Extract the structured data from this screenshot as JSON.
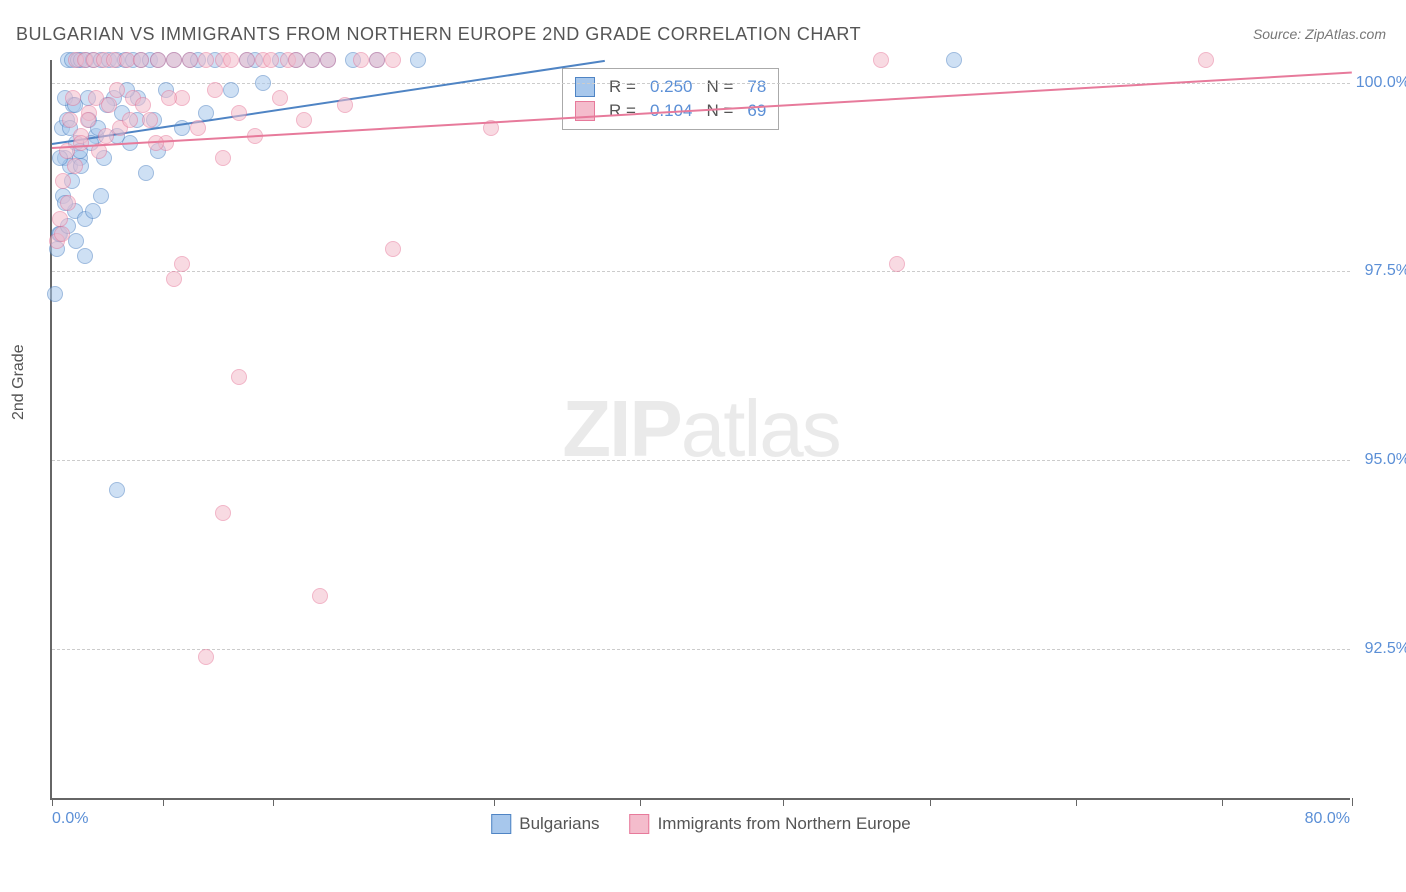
{
  "title": "BULGARIAN VS IMMIGRANTS FROM NORTHERN EUROPE 2ND GRADE CORRELATION CHART",
  "source": "Source: ZipAtlas.com",
  "y_axis_label": "2nd Grade",
  "watermark_bold": "ZIP",
  "watermark_rest": "atlas",
  "chart": {
    "type": "scatter",
    "xlim": [
      0,
      80
    ],
    "ylim": [
      90.5,
      100.3
    ],
    "y_ticks": [
      92.5,
      95.0,
      97.5,
      100.0
    ],
    "y_tick_labels": [
      "92.5%",
      "95.0%",
      "97.5%",
      "100.0%"
    ],
    "x_ticks_pct": [
      0,
      6.8,
      13.6,
      27.2,
      36.2,
      45.0,
      54.0,
      63.0,
      72.0,
      80.0
    ],
    "x_left_label": "0.0%",
    "x_right_label": "80.0%",
    "background_color": "#ffffff",
    "grid_color": "#cccccc",
    "series": [
      {
        "name": "Bulgarians",
        "legend_label": "Bulgarians",
        "fill_color": "#a7c7ec",
        "stroke_color": "#4f84c4",
        "r_label": "R =",
        "r_value": "0.250",
        "n_label": "N =",
        "n_value": "78",
        "trend": {
          "x1": 0,
          "y1": 99.2,
          "x2": 34,
          "y2": 100.3
        },
        "points": [
          [
            0.2,
            97.2
          ],
          [
            0.3,
            97.8
          ],
          [
            0.4,
            98.0
          ],
          [
            0.5,
            98.0
          ],
          [
            0.6,
            99.4
          ],
          [
            0.7,
            98.5
          ],
          [
            0.8,
            99.0
          ],
          [
            0.9,
            99.5
          ],
          [
            1.0,
            100.3
          ],
          [
            1.1,
            98.9
          ],
          [
            1.2,
            100.3
          ],
          [
            1.3,
            99.7
          ],
          [
            1.4,
            98.3
          ],
          [
            1.5,
            99.2
          ],
          [
            1.6,
            100.3
          ],
          [
            1.7,
            99.0
          ],
          [
            1.8,
            100.3
          ],
          [
            2.0,
            98.2
          ],
          [
            2.1,
            100.3
          ],
          [
            2.3,
            99.5
          ],
          [
            2.5,
            100.3
          ],
          [
            2.7,
            99.3
          ],
          [
            3.0,
            100.3
          ],
          [
            3.2,
            99.0
          ],
          [
            3.5,
            100.3
          ],
          [
            3.8,
            99.8
          ],
          [
            4.0,
            100.3
          ],
          [
            4.3,
            99.6
          ],
          [
            4.5,
            100.3
          ],
          [
            4.8,
            99.2
          ],
          [
            5.0,
            100.3
          ],
          [
            5.3,
            99.8
          ],
          [
            5.5,
            100.3
          ],
          [
            5.8,
            98.8
          ],
          [
            6.0,
            100.3
          ],
          [
            6.3,
            99.5
          ],
          [
            6.5,
            100.3
          ],
          [
            7.0,
            99.9
          ],
          [
            7.5,
            100.3
          ],
          [
            8.0,
            99.4
          ],
          [
            8.5,
            100.3
          ],
          [
            9.0,
            100.3
          ],
          [
            9.5,
            99.6
          ],
          [
            10.0,
            100.3
          ],
          [
            11.0,
            99.9
          ],
          [
            12.0,
            100.3
          ],
          [
            12.5,
            100.3
          ],
          [
            13.0,
            100.0
          ],
          [
            14.0,
            100.3
          ],
          [
            15.0,
            100.3
          ],
          [
            16.0,
            100.3
          ],
          [
            17.0,
            100.3
          ],
          [
            18.5,
            100.3
          ],
          [
            20.0,
            100.3
          ],
          [
            22.5,
            100.3
          ],
          [
            1.0,
            98.1
          ],
          [
            1.5,
            97.9
          ],
          [
            2.0,
            97.7
          ],
          [
            2.5,
            98.3
          ],
          [
            3.0,
            98.5
          ],
          [
            0.5,
            99.0
          ],
          [
            0.8,
            99.8
          ],
          [
            1.1,
            99.4
          ],
          [
            1.4,
            99.7
          ],
          [
            1.7,
            99.1
          ],
          [
            2.2,
            99.8
          ],
          [
            2.8,
            99.4
          ],
          [
            3.4,
            99.7
          ],
          [
            4.0,
            99.3
          ],
          [
            4.6,
            99.9
          ],
          [
            5.2,
            99.5
          ],
          [
            6.5,
            99.1
          ],
          [
            4.0,
            94.6
          ],
          [
            55.5,
            100.3
          ],
          [
            0.8,
            98.4
          ],
          [
            1.2,
            98.7
          ],
          [
            1.8,
            98.9
          ],
          [
            2.4,
            99.2
          ]
        ]
      },
      {
        "name": "Immigrants from Northern Europe",
        "legend_label": "Immigrants from Northern Europe",
        "fill_color": "#f4bccc",
        "stroke_color": "#e77a9b",
        "r_label": "R =",
        "r_value": "0.104",
        "n_label": "N =",
        "n_value": "69",
        "trend": {
          "x1": 0,
          "y1": 99.15,
          "x2": 80,
          "y2": 100.15
        },
        "points": [
          [
            0.3,
            97.9
          ],
          [
            0.5,
            98.2
          ],
          [
            0.7,
            98.7
          ],
          [
            0.9,
            99.1
          ],
          [
            1.1,
            99.5
          ],
          [
            1.3,
            99.8
          ],
          [
            1.5,
            100.3
          ],
          [
            1.8,
            99.3
          ],
          [
            2.0,
            100.3
          ],
          [
            2.3,
            99.6
          ],
          [
            2.6,
            100.3
          ],
          [
            2.9,
            99.1
          ],
          [
            3.2,
            100.3
          ],
          [
            3.5,
            99.7
          ],
          [
            3.8,
            100.3
          ],
          [
            4.2,
            99.4
          ],
          [
            4.6,
            100.3
          ],
          [
            5.0,
            99.8
          ],
          [
            5.5,
            100.3
          ],
          [
            6.0,
            99.5
          ],
          [
            6.5,
            100.3
          ],
          [
            7.0,
            99.2
          ],
          [
            7.5,
            100.3
          ],
          [
            8.0,
            99.8
          ],
          [
            8.5,
            100.3
          ],
          [
            9.0,
            99.4
          ],
          [
            9.5,
            100.3
          ],
          [
            10.0,
            99.9
          ],
          [
            10.5,
            100.3
          ],
          [
            11.0,
            100.3
          ],
          [
            11.5,
            99.6
          ],
          [
            12.0,
            100.3
          ],
          [
            12.5,
            99.3
          ],
          [
            13.0,
            100.3
          ],
          [
            13.5,
            100.3
          ],
          [
            14.0,
            99.8
          ],
          [
            14.5,
            100.3
          ],
          [
            15.0,
            100.3
          ],
          [
            15.5,
            99.5
          ],
          [
            16.0,
            100.3
          ],
          [
            17.0,
            100.3
          ],
          [
            18.0,
            99.7
          ],
          [
            19.0,
            100.3
          ],
          [
            20.0,
            100.3
          ],
          [
            21.0,
            100.3
          ],
          [
            27.0,
            99.4
          ],
          [
            7.5,
            97.4
          ],
          [
            10.5,
            99.0
          ],
          [
            8.0,
            97.6
          ],
          [
            10.5,
            94.3
          ],
          [
            16.5,
            93.2
          ],
          [
            9.5,
            92.4
          ],
          [
            21.0,
            97.8
          ],
          [
            51.0,
            100.3
          ],
          [
            52.0,
            97.6
          ],
          [
            71.0,
            100.3
          ],
          [
            0.6,
            98.0
          ],
          [
            1.0,
            98.4
          ],
          [
            1.4,
            98.9
          ],
          [
            1.8,
            99.2
          ],
          [
            2.2,
            99.5
          ],
          [
            2.7,
            99.8
          ],
          [
            3.3,
            99.3
          ],
          [
            4.0,
            99.9
          ],
          [
            4.8,
            99.5
          ],
          [
            5.6,
            99.7
          ],
          [
            6.4,
            99.2
          ],
          [
            7.2,
            99.8
          ],
          [
            11.5,
            96.1
          ]
        ]
      }
    ]
  },
  "legend": {
    "series1": "Bulgarians",
    "series2": "Immigrants from Northern Europe"
  }
}
